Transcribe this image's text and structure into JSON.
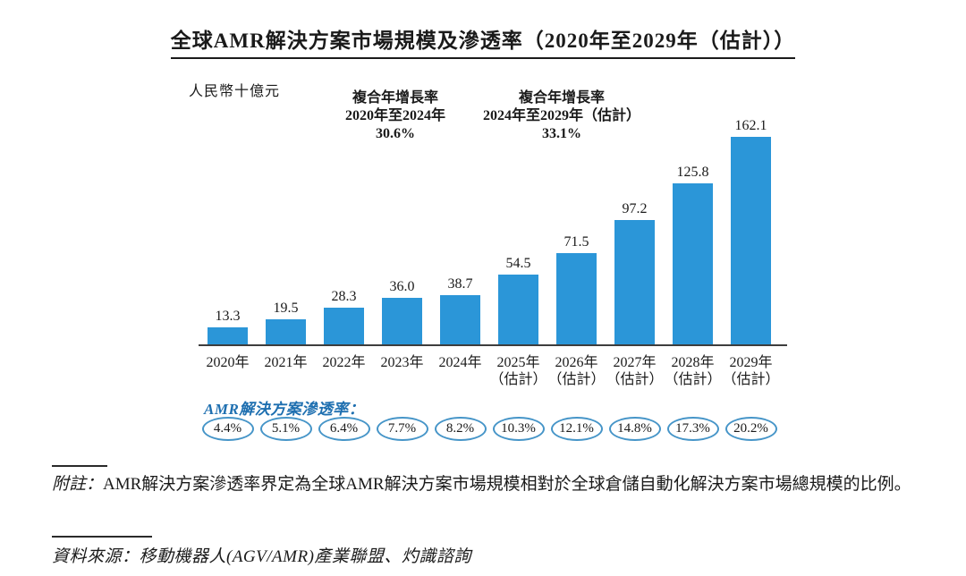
{
  "page": {
    "title": "全球AMR解決方案市場規模及滲透率（2020年至2029年（估計））",
    "unit_label": "人民幣十億元"
  },
  "cagr_annotations": [
    {
      "title": "複合年增長率",
      "period": "2020年至2024年",
      "value": "30.6%"
    },
    {
      "title": "複合年增長率",
      "period": "2024年至2029年（估計）",
      "value": "33.1%"
    }
  ],
  "chart_data": {
    "type": "bar",
    "title": "全球AMR解決方案市場規模及滲透率（2020年至2029年（估計））",
    "xlabel": "",
    "ylabel": "人民幣十億元",
    "categories": [
      {
        "year": "2020年",
        "note": ""
      },
      {
        "year": "2021年",
        "note": ""
      },
      {
        "year": "2022年",
        "note": ""
      },
      {
        "year": "2023年",
        "note": ""
      },
      {
        "year": "2024年",
        "note": ""
      },
      {
        "year": "2025年",
        "note": "（估計）"
      },
      {
        "year": "2026年",
        "note": "（估計）"
      },
      {
        "year": "2027年",
        "note": "（估計）"
      },
      {
        "year": "2028年",
        "note": "（估計）"
      },
      {
        "year": "2029年",
        "note": "（估計）"
      }
    ],
    "values": [
      13.3,
      19.5,
      28.3,
      36.0,
      38.7,
      54.5,
      71.5,
      97.2,
      125.8,
      162.1
    ],
    "value_labels": [
      "13.3",
      "19.5",
      "28.3",
      "36.0",
      "38.7",
      "54.5",
      "71.5",
      "97.2",
      "125.8",
      "162.1"
    ],
    "ylim": [
      0,
      170
    ],
    "grid": false,
    "legend": false,
    "bar_color": "#2B96D8",
    "penetration_label": "AMR解決方案滲透率：",
    "penetration_label_color": "#1E6FB0",
    "penetration_oval_border_color": "#4695C8",
    "penetration_rates": [
      "4.4%",
      "5.1%",
      "6.4%",
      "7.7%",
      "8.2%",
      "10.3%",
      "12.1%",
      "14.8%",
      "17.3%",
      "20.2%"
    ]
  },
  "footnote": {
    "label": "附註：",
    "text": "AMR解決方案滲透率界定為全球AMR解決方案市場規模相對於全球倉儲自動化解決方案市場總規模的比例。"
  },
  "source": {
    "text": "資料來源：移動機器人(AGV/AMR)產業聯盟、灼識諮詢"
  }
}
